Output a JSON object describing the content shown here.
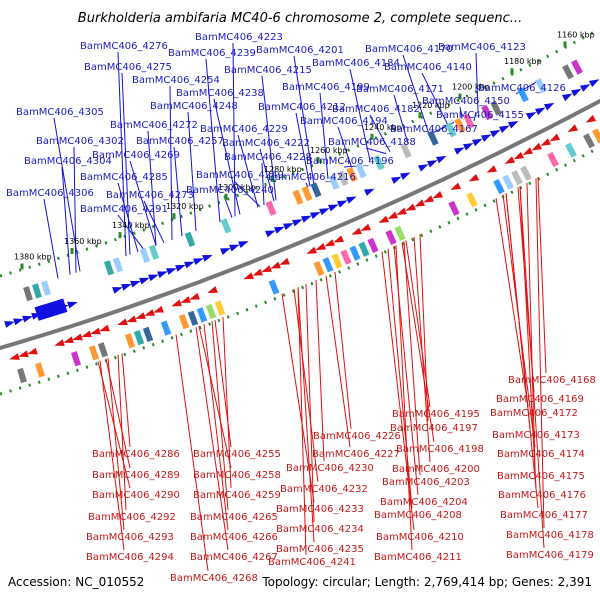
{
  "title": "Burkholderia ambifaria MC40-6 chromosome 2, complete sequenc...",
  "footer": {
    "accession": "Accession: NC_010552",
    "summary": "Topology: circular; Length: 2,769,414 bp; Genes: 2,391"
  },
  "ticks": [
    "1160 kbp",
    "1180 kbp",
    "1200 kbp",
    "1220 kbp",
    "1240 kbp",
    "1260 kbp",
    "1280 kbp",
    "1300 kbp",
    "1320 kbp",
    "1340 kbp",
    "1360 kbp",
    "1380 kbp"
  ],
  "colors": {
    "forward": "#1010e0",
    "reverse": "#e01010",
    "backbone": "#777777",
    "ticks": "#2a8a2a"
  },
  "genes_top": [
    "BamMC406_4223",
    "BamMC406_4276",
    "BamMC406_4239",
    "BamMC406_4201",
    "BamMC406_4170",
    "BamMC406_4123",
    "BamMC406_4275",
    "BamMC406_4215",
    "BamMC406_4184",
    "BamMC406_4140",
    "BamMC406_4254",
    "BamMC406_4199",
    "BamMC406_4171",
    "BamMC406_4126",
    "BamMC406_4238",
    "BamMC406_4150",
    "BamMC406_4248",
    "BamMC406_4212",
    "BamMC406_4182",
    "BamMC406_4305",
    "BamMC406_4155",
    "BamMC406_4272",
    "BamMC406_4194",
    "BamMC406_4229",
    "BamMC406_4167",
    "BamMC406_4302",
    "BamMC406_4257",
    "BamMC406_4222",
    "BamMC406_4188",
    "BamMC406_4269",
    "BamMC406_4228",
    "BamMC406_4304",
    "BamMC406_4196",
    "BamMC406_4285",
    "BamMC406_4249",
    "BamMC406_4216",
    "BamMC406_4240",
    "BamMC406_4306",
    "BamMC406_4273",
    "BamMC406_4291"
  ],
  "genes_bottom": [
    "BamMC406_4168",
    "BamMC406_4169",
    "BamMC406_4195",
    "BamMC406_4172",
    "BamMC406_4197",
    "BamMC406_4226",
    "BamMC406_4173",
    "BamMC406_4198",
    "BamMC406_4286",
    "BamMC406_4255",
    "BamMC406_4227",
    "BamMC406_4174",
    "BamMC406_4230",
    "BamMC406_4200",
    "BamMC406_4289",
    "BamMC406_4258",
    "BamMC406_4175",
    "BamMC406_4203",
    "BamMC406_4232",
    "BamMC406_4290",
    "BamMC406_4259",
    "BamMC406_4176",
    "BamMC406_4204",
    "BamMC406_4233",
    "BamMC406_4292",
    "BamMC406_4265",
    "BamMC406_4208",
    "BamMC406_4177",
    "BamMC406_4234",
    "BamMC406_4293",
    "BamMC406_4266",
    "BamMC406_4210",
    "BamMC406_4178",
    "BamMC406_4235",
    "BamMC406_4294",
    "BamMC406_4267",
    "BamMC406_4241",
    "BamMC406_4211",
    "BamMC406_4179",
    "BamMC406_4268"
  ]
}
